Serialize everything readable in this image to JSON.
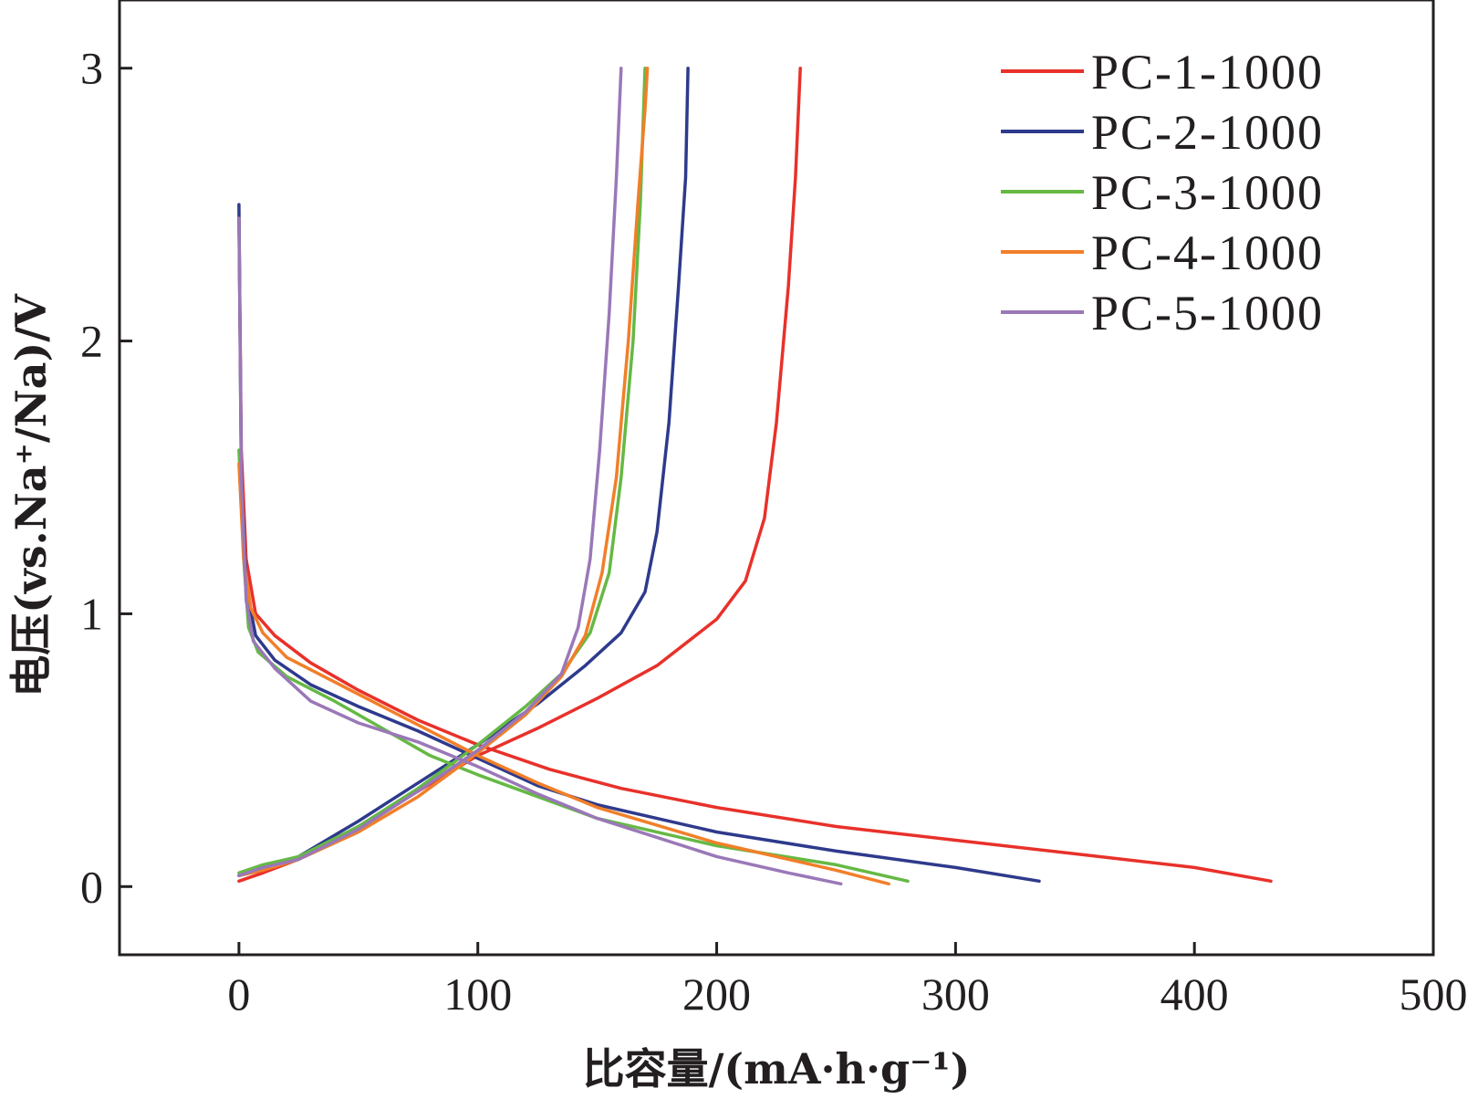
{
  "chart_data": {
    "type": "line",
    "xlabel": "比容量/(mA·h·g⁻¹)",
    "ylabel": "电压(vs.Na⁺/Na)/V",
    "xlim": [
      -50,
      500
    ],
    "ylim": [
      -0.25,
      3.25
    ],
    "x_ticks": [
      0,
      100,
      200,
      300,
      400,
      500
    ],
    "x_tick_labels": [
      "0",
      "100",
      "200",
      "300",
      "400",
      "500"
    ],
    "y_ticks": [
      0,
      1,
      2,
      3
    ],
    "y_tick_labels": [
      "0",
      "1",
      "2",
      "3"
    ],
    "grid": false,
    "legend_position": "top-right",
    "series": [
      {
        "name": "PC-1-1000",
        "color": "#e8312a",
        "discharge": [
          [
            0,
            2.45
          ],
          [
            1,
            1.6
          ],
          [
            3,
            1.2
          ],
          [
            7,
            1.0
          ],
          [
            15,
            0.92
          ],
          [
            30,
            0.82
          ],
          [
            50,
            0.72
          ],
          [
            75,
            0.61
          ],
          [
            100,
            0.52
          ],
          [
            130,
            0.43
          ],
          [
            160,
            0.36
          ],
          [
            200,
            0.29
          ],
          [
            250,
            0.22
          ],
          [
            300,
            0.17
          ],
          [
            350,
            0.12
          ],
          [
            400,
            0.07
          ],
          [
            432,
            0.02
          ]
        ],
        "charge": [
          [
            0,
            0.02
          ],
          [
            10,
            0.05
          ],
          [
            25,
            0.1
          ],
          [
            50,
            0.22
          ],
          [
            75,
            0.35
          ],
          [
            100,
            0.48
          ],
          [
            125,
            0.58
          ],
          [
            150,
            0.69
          ],
          [
            175,
            0.81
          ],
          [
            200,
            0.98
          ],
          [
            212,
            1.12
          ],
          [
            220,
            1.35
          ],
          [
            225,
            1.7
          ],
          [
            230,
            2.2
          ],
          [
            233,
            2.6
          ],
          [
            235,
            3.0
          ]
        ]
      },
      {
        "name": "PC-2-1000",
        "color": "#2e3a8c",
        "discharge": [
          [
            0,
            2.5
          ],
          [
            1,
            1.5
          ],
          [
            3,
            1.1
          ],
          [
            7,
            0.92
          ],
          [
            15,
            0.83
          ],
          [
            30,
            0.74
          ],
          [
            50,
            0.66
          ],
          [
            75,
            0.57
          ],
          [
            100,
            0.47
          ],
          [
            125,
            0.37
          ],
          [
            150,
            0.3
          ],
          [
            200,
            0.2
          ],
          [
            250,
            0.13
          ],
          [
            300,
            0.07
          ],
          [
            335,
            0.02
          ]
        ],
        "charge": [
          [
            0,
            0.04
          ],
          [
            10,
            0.07
          ],
          [
            25,
            0.11
          ],
          [
            50,
            0.24
          ],
          [
            75,
            0.38
          ],
          [
            100,
            0.52
          ],
          [
            125,
            0.67
          ],
          [
            145,
            0.81
          ],
          [
            160,
            0.93
          ],
          [
            170,
            1.08
          ],
          [
            175,
            1.3
          ],
          [
            180,
            1.7
          ],
          [
            184,
            2.2
          ],
          [
            187,
            2.6
          ],
          [
            188,
            3.0
          ]
        ]
      },
      {
        "name": "PC-3-1000",
        "color": "#65b944",
        "discharge": [
          [
            0,
            1.6
          ],
          [
            2,
            1.2
          ],
          [
            4,
            0.95
          ],
          [
            8,
            0.86
          ],
          [
            20,
            0.77
          ],
          [
            40,
            0.68
          ],
          [
            60,
            0.58
          ],
          [
            80,
            0.48
          ],
          [
            100,
            0.41
          ],
          [
            125,
            0.33
          ],
          [
            150,
            0.25
          ],
          [
            200,
            0.15
          ],
          [
            250,
            0.08
          ],
          [
            280,
            0.02
          ]
        ],
        "charge": [
          [
            0,
            0.05
          ],
          [
            10,
            0.08
          ],
          [
            25,
            0.11
          ],
          [
            50,
            0.22
          ],
          [
            75,
            0.36
          ],
          [
            100,
            0.52
          ],
          [
            120,
            0.66
          ],
          [
            135,
            0.78
          ],
          [
            147,
            0.93
          ],
          [
            155,
            1.15
          ],
          [
            160,
            1.5
          ],
          [
            165,
            2.0
          ],
          [
            168,
            2.5
          ],
          [
            170,
            3.0
          ]
        ]
      },
      {
        "name": "PC-4-1000",
        "color": "#f17f29",
        "discharge": [
          [
            0,
            1.55
          ],
          [
            2,
            1.2
          ],
          [
            5,
            1.02
          ],
          [
            10,
            0.93
          ],
          [
            20,
            0.84
          ],
          [
            40,
            0.75
          ],
          [
            60,
            0.66
          ],
          [
            80,
            0.57
          ],
          [
            100,
            0.48
          ],
          [
            125,
            0.38
          ],
          [
            150,
            0.29
          ],
          [
            200,
            0.16
          ],
          [
            250,
            0.06
          ],
          [
            272,
            0.01
          ]
        ],
        "charge": [
          [
            0,
            0.04
          ],
          [
            10,
            0.06
          ],
          [
            25,
            0.1
          ],
          [
            50,
            0.2
          ],
          [
            75,
            0.33
          ],
          [
            100,
            0.49
          ],
          [
            120,
            0.63
          ],
          [
            135,
            0.77
          ],
          [
            145,
            0.92
          ],
          [
            152,
            1.15
          ],
          [
            158,
            1.5
          ],
          [
            163,
            2.0
          ],
          [
            167,
            2.5
          ],
          [
            170,
            2.85
          ],
          [
            171,
            3.0
          ]
        ]
      },
      {
        "name": "PC-5-1000",
        "color": "#9a78b8",
        "discharge": [
          [
            0,
            2.45
          ],
          [
            1,
            1.5
          ],
          [
            3,
            1.05
          ],
          [
            6,
            0.9
          ],
          [
            15,
            0.8
          ],
          [
            30,
            0.68
          ],
          [
            50,
            0.6
          ],
          [
            75,
            0.53
          ],
          [
            100,
            0.44
          ],
          [
            125,
            0.34
          ],
          [
            150,
            0.25
          ],
          [
            200,
            0.11
          ],
          [
            230,
            0.05
          ],
          [
            252,
            0.01
          ]
        ],
        "charge": [
          [
            0,
            0.04
          ],
          [
            10,
            0.07
          ],
          [
            25,
            0.1
          ],
          [
            50,
            0.21
          ],
          [
            75,
            0.35
          ],
          [
            100,
            0.5
          ],
          [
            120,
            0.64
          ],
          [
            135,
            0.78
          ],
          [
            142,
            0.95
          ],
          [
            147,
            1.2
          ],
          [
            151,
            1.6
          ],
          [
            155,
            2.1
          ],
          [
            158,
            2.6
          ],
          [
            160,
            3.0
          ]
        ]
      }
    ]
  }
}
